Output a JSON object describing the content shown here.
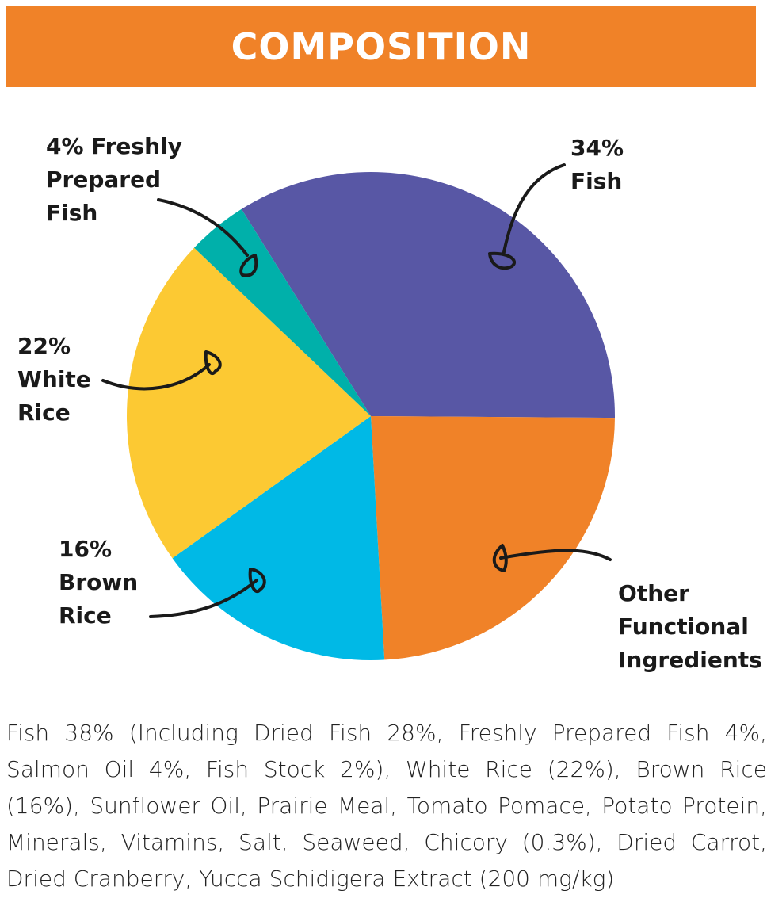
{
  "header": {
    "title": "COMPOSITION"
  },
  "colors": {
    "banner": "#f08228",
    "fish": "#5857a5",
    "other": "#f08228",
    "brown_rice": "#00b9e6",
    "white_rice": "#fcc933",
    "fresh_fish": "#00b0aa"
  },
  "chart_data": {
    "type": "pie",
    "title": "COMPOSITION",
    "slices": [
      {
        "label": "34% Fish",
        "value": 34,
        "color": "#5857a5"
      },
      {
        "label": "Other Functional Ingredients",
        "value": 24,
        "color": "#f08228"
      },
      {
        "label": "16% Brown Rice",
        "value": 16,
        "color": "#00b9e6"
      },
      {
        "label": "22% White Rice",
        "value": 22,
        "color": "#fcc933"
      },
      {
        "label": "4% Freshly Prepared Fish",
        "value": 4,
        "color": "#00b0aa"
      }
    ],
    "labels": {
      "fish": [
        "34%",
        "Fish"
      ],
      "other": [
        "Other",
        "Functional",
        "Ingredients"
      ],
      "brown_rice": [
        "16%",
        "Brown",
        "Rice"
      ],
      "white_rice": [
        "22%",
        "White",
        "Rice"
      ],
      "fresh_fish": [
        "4% Freshly",
        "Prepared",
        "Fish"
      ]
    }
  },
  "description": {
    "lines": [
      "Fish 38% (Including Dried Fish 28%, Freshly Prepared Fish 4%,",
      "Salmon Oil 4%, Fish Stock 2%), White Rice (22%), Brown Rice",
      "(16%), Sunflower Oil, Prairie Meal, Tomato Pomace, Potato Protein,",
      "Minerals, Vitamins, Salt, Seaweed, Chicory (0.3%), Dried Carrot,",
      "Dried Cranberry, Yucca Schidigera Extract (200 mg/kg)"
    ]
  }
}
